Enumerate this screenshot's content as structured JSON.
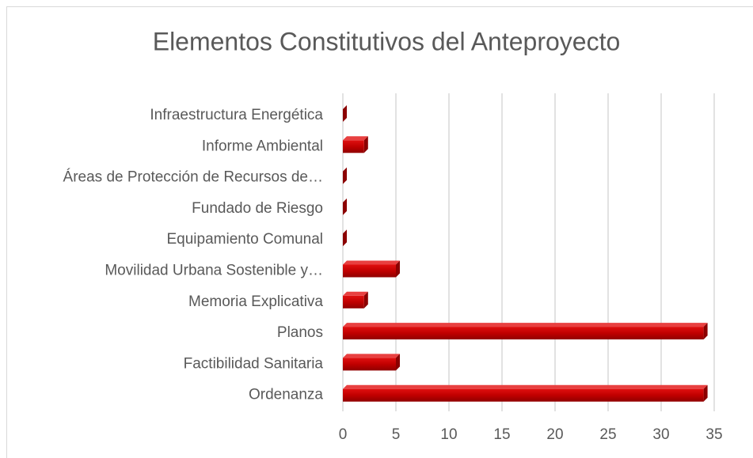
{
  "chart_data": {
    "type": "bar",
    "orientation": "horizontal",
    "title": "Elementos Constitutivos del Anteproyecto",
    "categories": [
      "Infraestructura Energética",
      "Informe Ambiental",
      "Áreas de Protección de Recursos de…",
      "Fundado de Riesgo",
      "Equipamiento Comunal",
      "Movilidad Urbana Sostenible y…",
      "Memoria Explicativa",
      "Planos",
      "Factibilidad Sanitaria",
      "Ordenanza"
    ],
    "values": [
      0,
      2,
      0,
      0,
      0,
      5,
      2,
      34,
      5,
      34
    ],
    "color": "#c00000",
    "xlim": [
      0,
      35
    ],
    "xticks": [
      0,
      5,
      10,
      15,
      20,
      25,
      30,
      35
    ],
    "grid": true
  }
}
